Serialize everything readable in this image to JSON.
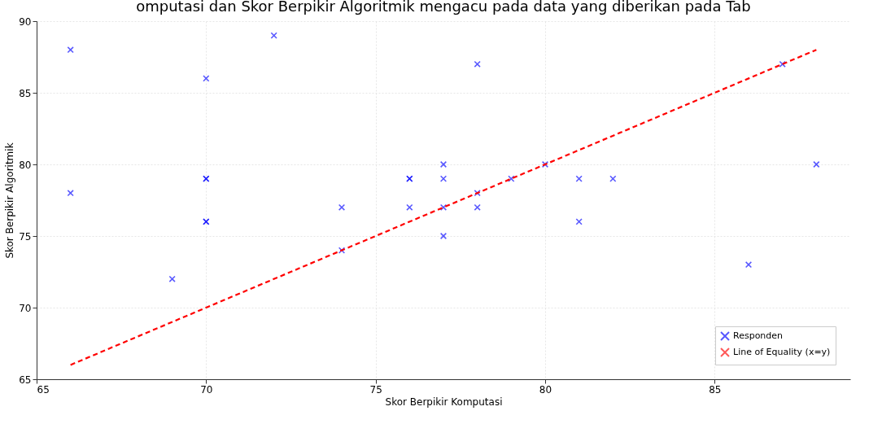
{
  "chart_data": {
    "type": "scatter",
    "title": "omputasi dan Skor Berpikir Algoritmik mengacu pada data yang diberikan pada Tab",
    "xlabel": "Skor Berpikir Komputasi",
    "ylabel": "Skor Berpikir Algoritmik",
    "xlim": [
      65,
      89
    ],
    "xticks": [
      65,
      70,
      75,
      80,
      85
    ],
    "ylim": [
      65,
      90
    ],
    "yticks": [
      65,
      70,
      75,
      80,
      85,
      90
    ],
    "grid": true,
    "legend": "bottom right",
    "series": [
      {
        "name": "Responden",
        "marker": "cross",
        "color": "#0000ff",
        "x": [
          66,
          66,
          69,
          70,
          70,
          70,
          70,
          70,
          72,
          74,
          74,
          76,
          76,
          76,
          77,
          77,
          77,
          77,
          78,
          78,
          78,
          79,
          80,
          81,
          81,
          82,
          86,
          87,
          88
        ],
        "values": [
          88,
          78,
          72,
          86,
          79,
          79,
          76,
          76,
          89,
          77,
          74,
          79,
          79,
          77,
          80,
          79,
          77,
          75,
          87,
          78,
          77,
          79,
          80,
          79,
          76,
          79,
          73,
          87,
          80
        ]
      },
      {
        "name": "Line of Equality (x=y)",
        "type": "line",
        "color": "#ff0000",
        "line_style": "dashed",
        "marker": "none",
        "x": [
          66,
          88
        ],
        "values": [
          66,
          88
        ]
      }
    ]
  }
}
